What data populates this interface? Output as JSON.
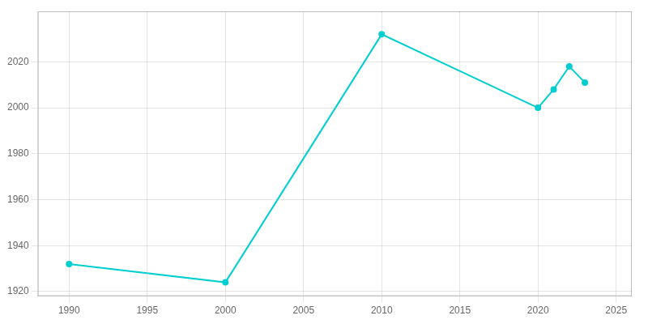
{
  "chart_data": {
    "type": "line",
    "x": [
      1990,
      2000,
      2010,
      2020,
      2021,
      2022,
      2023
    ],
    "values": [
      1932,
      1924,
      2032,
      2000,
      2008,
      2018,
      2011
    ],
    "color": "#00CED1",
    "marker": "circle",
    "xlim": [
      1988,
      2026
    ],
    "xticks": [
      1990,
      1995,
      2000,
      2005,
      2010,
      2015,
      2020,
      2025
    ],
    "ylim": [
      1918,
      2042
    ],
    "yticks": [
      1920,
      1940,
      1960,
      1980,
      2000,
      2020
    ],
    "grid": true
  }
}
